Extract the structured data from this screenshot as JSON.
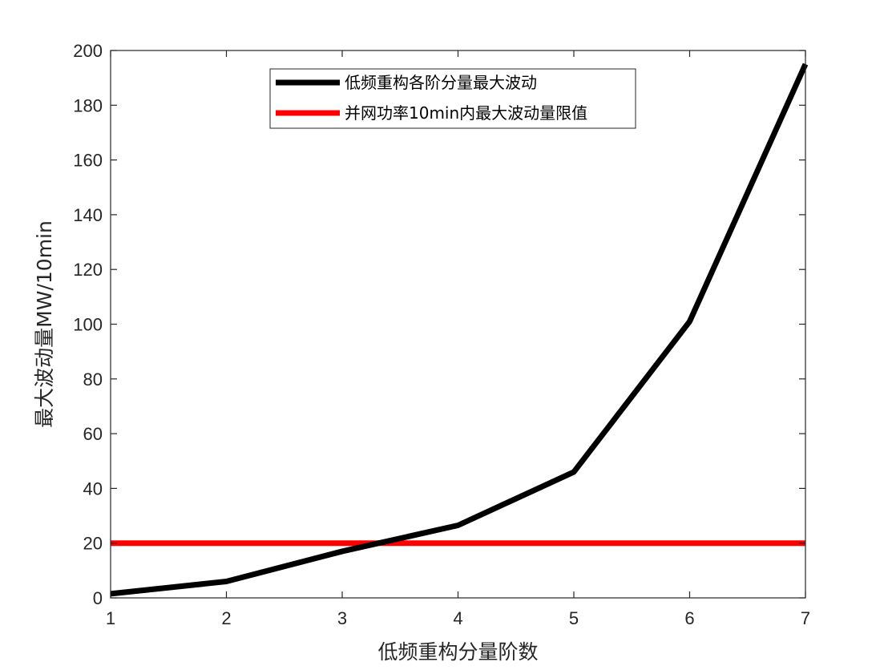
{
  "chart_data": {
    "type": "line",
    "title": "",
    "xlabel": "低频重构分量阶数",
    "ylabel": "最大波动量MW/10min",
    "xlim": [
      1,
      7
    ],
    "ylim": [
      0,
      200
    ],
    "xticks": [
      1,
      2,
      3,
      4,
      5,
      6,
      7
    ],
    "yticks": [
      0,
      20,
      40,
      60,
      80,
      100,
      120,
      140,
      160,
      180,
      200
    ],
    "grid": false,
    "legend_position": "top-center",
    "series": [
      {
        "name": "低频重构各阶分量最大波动",
        "color": "#000000",
        "x": [
          1,
          2,
          3,
          4,
          5,
          6,
          7
        ],
        "y": [
          1.5,
          6,
          17,
          26.5,
          46,
          101,
          195
        ]
      },
      {
        "name": "并网功率10min内最大波动量限值",
        "color": "#ff0000",
        "x": [
          1,
          7
        ],
        "y": [
          20,
          20
        ]
      }
    ]
  }
}
